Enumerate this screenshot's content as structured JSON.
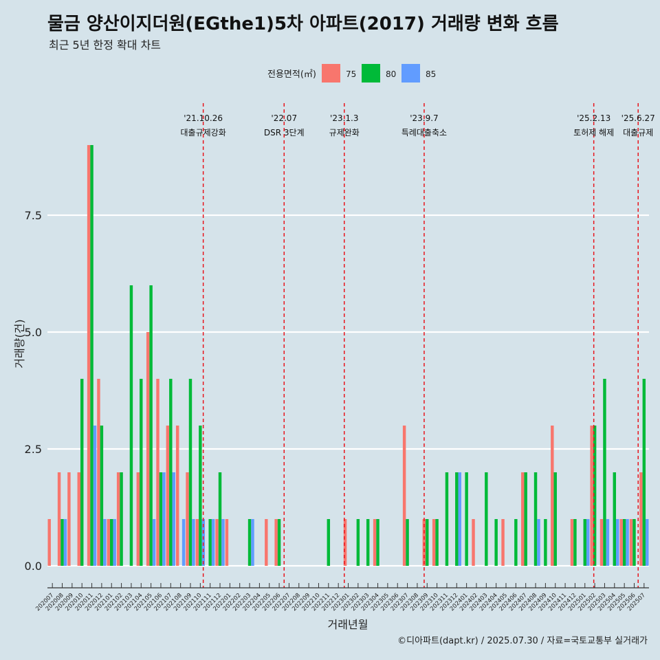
{
  "chart_data": {
    "type": "bar",
    "title": "물금 양산이지더원(EGthe1)5차 아파트(2017) 거래량 변화 흐름",
    "subtitle": "최근 5년 한정 확대 차트",
    "xlabel": "거래년월",
    "ylabel": "거래량(건)",
    "ylim": [
      0,
      9
    ],
    "yticks": [
      "0.0",
      "2.5",
      "5.0",
      "7.5"
    ],
    "ytick_values": [
      0,
      2.5,
      5,
      7.5
    ],
    "legend": {
      "title": "전용면적(㎡)",
      "placement": "top"
    },
    "credit": "©디아파트(dapt.kr) / 2025.07.30 / 자료=국토교통부 실거래가",
    "categories": [
      "202007",
      "202008",
      "202009",
      "202010",
      "202011",
      "202012",
      "202101",
      "202102",
      "202103",
      "202104",
      "202105",
      "202106",
      "202107",
      "202108",
      "202109",
      "202110",
      "202111",
      "202112",
      "202201",
      "202202",
      "202203",
      "202204",
      "202205",
      "202206",
      "202207",
      "202208",
      "202209",
      "202210",
      "202211",
      "202212",
      "202301",
      "202302",
      "202303",
      "202304",
      "202305",
      "202306",
      "202307",
      "202308",
      "202309",
      "202310",
      "202311",
      "202312",
      "202401",
      "202402",
      "202403",
      "202404",
      "202405",
      "202406",
      "202407",
      "202408",
      "202409",
      "202410",
      "202411",
      "202412",
      "202501",
      "202502",
      "202503",
      "202504",
      "202505",
      "202506",
      "202507"
    ],
    "series": [
      {
        "name": "75",
        "color": "#f8766d",
        "values": [
          1,
          2,
          2,
          2,
          9,
          4,
          1,
          2,
          0,
          2,
          5,
          4,
          3,
          3,
          2,
          1,
          0,
          1,
          1,
          0,
          0,
          0,
          1,
          1,
          0,
          0,
          0,
          0,
          0,
          0,
          1,
          0,
          0,
          1,
          0,
          0,
          3,
          0,
          1,
          1,
          0,
          0,
          0,
          1,
          0,
          0,
          1,
          0,
          2,
          0,
          0,
          3,
          0,
          1,
          0,
          3,
          1,
          0,
          1,
          1,
          2
        ]
      },
      {
        "name": "80",
        "color": "#00ba38",
        "values": [
          0,
          1,
          0,
          4,
          9,
          3,
          1,
          2,
          6,
          4,
          6,
          2,
          4,
          0,
          4,
          3,
          1,
          2,
          0,
          0,
          1,
          0,
          0,
          1,
          0,
          0,
          0,
          0,
          1,
          0,
          0,
          1,
          1,
          1,
          0,
          0,
          1,
          0,
          1,
          1,
          2,
          2,
          2,
          0,
          2,
          1,
          0,
          1,
          2,
          2,
          1,
          2,
          0,
          1,
          1,
          3,
          4,
          2,
          1,
          1,
          4
        ]
      },
      {
        "name": "85",
        "color": "#619cff",
        "values": [
          0,
          1,
          0,
          0,
          3,
          1,
          1,
          0,
          0,
          0,
          1,
          2,
          2,
          1,
          1,
          1,
          1,
          1,
          0,
          0,
          1,
          0,
          0,
          0,
          0,
          0,
          0,
          0,
          0,
          0,
          0,
          0,
          0,
          0,
          0,
          0,
          0,
          0,
          0,
          0,
          0,
          2,
          0,
          0,
          0,
          0,
          0,
          0,
          0,
          1,
          0,
          0,
          0,
          0,
          1,
          0,
          1,
          1,
          1,
          0,
          1
        ]
      }
    ],
    "events": [
      {
        "date": "'21.10.26",
        "label": "대출규제강화",
        "month": "202110",
        "offset": 0.8
      },
      {
        "date": "'22.07",
        "label": "DSR 3단계",
        "month": "202207",
        "offset": 0
      },
      {
        "date": "'23.1.3",
        "label": "규제완화",
        "month": "202301",
        "offset": 0.1
      },
      {
        "date": "'23.9.7",
        "label": "특례대출축소",
        "month": "202309",
        "offset": 0.2
      },
      {
        "date": "'25.2.13",
        "label": "토허제 해제",
        "month": "202502",
        "offset": 0.4
      },
      {
        "date": "'25.6.27",
        "label": "대출규제",
        "month": "202506",
        "offset": 0.9
      }
    ]
  }
}
